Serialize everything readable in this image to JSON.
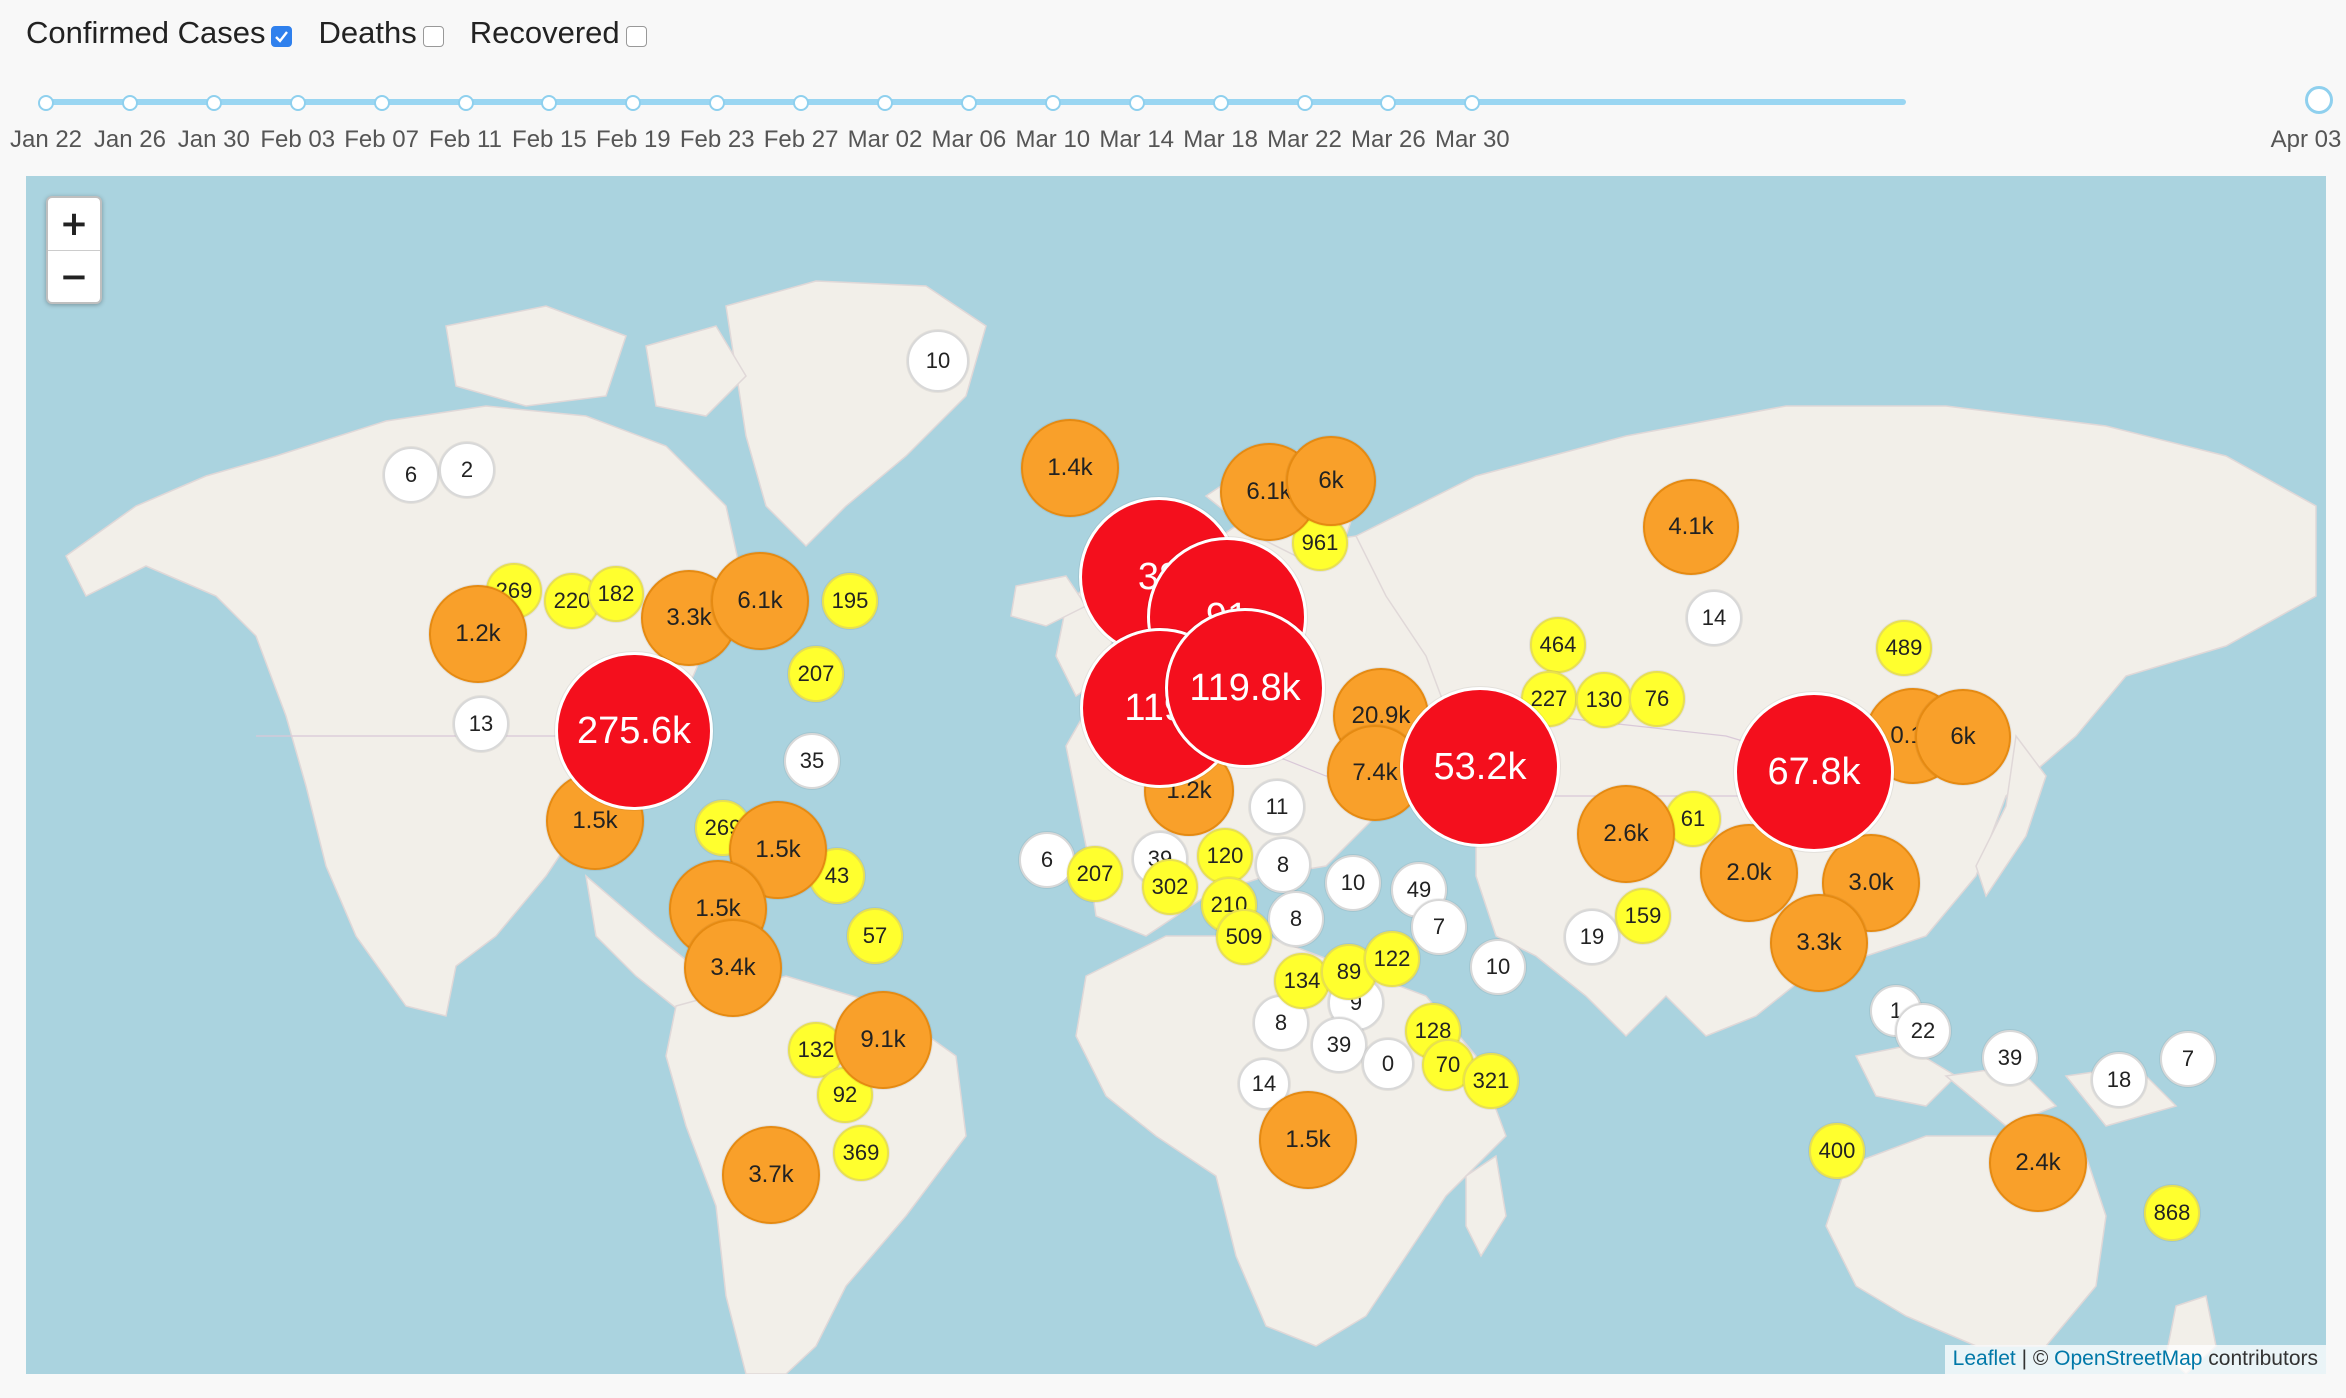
{
  "legend": [
    {
      "label": "Confirmed Cases",
      "checked": true
    },
    {
      "label": "Deaths",
      "checked": false
    },
    {
      "label": "Recovered",
      "checked": false
    }
  ],
  "timeline": {
    "labels": [
      "Jan 22",
      "Jan 26",
      "Jan 30",
      "Feb 03",
      "Feb 07",
      "Feb 11",
      "Feb 15",
      "Feb 19",
      "Feb 23",
      "Feb 27",
      "Mar 02",
      "Mar 06",
      "Mar 10",
      "Mar 14",
      "Mar 18",
      "Mar 22",
      "Mar 26",
      "Mar 30",
      "Apr 03"
    ],
    "selected": "Apr 03"
  },
  "map": {
    "zoom_in": "+",
    "zoom_out": "−",
    "attribution": {
      "leaflet": "Leaflet",
      "sep": " | © ",
      "osm": "OpenStreetMap",
      "suffix": " contributors"
    },
    "colors": {
      "water": "#aad3df",
      "land": "#f2efe9",
      "low": "#ffffff",
      "mid": "#ffff2e",
      "high": "#f9a02a",
      "top": "#f40f1d"
    }
  },
  "bubbles": [
    {
      "label": "10",
      "tier": "low"
    },
    {
      "label": "6",
      "tier": "low"
    },
    {
      "label": "2",
      "tier": "low"
    },
    {
      "label": "13",
      "tier": "low"
    },
    {
      "label": "35",
      "tier": "low"
    },
    {
      "label": "6",
      "tier": "low"
    },
    {
      "label": "11",
      "tier": "low"
    },
    {
      "label": "8",
      "tier": "low"
    },
    {
      "label": "10",
      "tier": "low"
    },
    {
      "label": "49",
      "tier": "low"
    },
    {
      "label": "8",
      "tier": "low"
    },
    {
      "label": "7",
      "tier": "low"
    },
    {
      "label": "9",
      "tier": "low"
    },
    {
      "label": "10",
      "tier": "low"
    },
    {
      "label": "8",
      "tier": "low"
    },
    {
      "label": "39",
      "tier": "low"
    },
    {
      "label": "14",
      "tier": "low"
    },
    {
      "label": "19",
      "tier": "low"
    },
    {
      "label": "1",
      "tier": "low"
    },
    {
      "label": "22",
      "tier": "low"
    },
    {
      "label": "39",
      "tier": "low"
    },
    {
      "label": "18",
      "tier": "low"
    },
    {
      "label": "7",
      "tier": "low"
    },
    {
      "label": "14",
      "tier": "low"
    },
    {
      "label": "39",
      "tier": "low"
    },
    {
      "label": "0",
      "tier": "low"
    },
    {
      "label": "269",
      "tier": "mid"
    },
    {
      "label": "220",
      "tier": "mid"
    },
    {
      "label": "182",
      "tier": "mid"
    },
    {
      "label": "195",
      "tier": "mid"
    },
    {
      "label": "207",
      "tier": "mid"
    },
    {
      "label": "269",
      "tier": "mid"
    },
    {
      "label": "43",
      "tier": "mid"
    },
    {
      "label": "57",
      "tier": "mid"
    },
    {
      "label": "132",
      "tier": "mid"
    },
    {
      "label": "92",
      "tier": "mid"
    },
    {
      "label": "369",
      "tier": "mid"
    },
    {
      "label": "961",
      "tier": "mid"
    },
    {
      "label": "464",
      "tier": "mid"
    },
    {
      "label": "227",
      "tier": "mid"
    },
    {
      "label": "130",
      "tier": "mid"
    },
    {
      "label": "76",
      "tier": "mid"
    },
    {
      "label": "61",
      "tier": "mid"
    },
    {
      "label": "159",
      "tier": "mid"
    },
    {
      "label": "489",
      "tier": "mid"
    },
    {
      "label": "207",
      "tier": "mid"
    },
    {
      "label": "302",
      "tier": "mid"
    },
    {
      "label": "120",
      "tier": "mid"
    },
    {
      "label": "210",
      "tier": "mid"
    },
    {
      "label": "509",
      "tier": "mid"
    },
    {
      "label": "134",
      "tier": "mid"
    },
    {
      "label": "89",
      "tier": "mid"
    },
    {
      "label": "122",
      "tier": "mid"
    },
    {
      "label": "128",
      "tier": "mid"
    },
    {
      "label": "70",
      "tier": "mid"
    },
    {
      "label": "321",
      "tier": "mid"
    },
    {
      "label": "400",
      "tier": "mid"
    },
    {
      "label": "868",
      "tier": "mid"
    },
    {
      "label": "1.4k",
      "tier": "high"
    },
    {
      "label": "6.1k",
      "tier": "high"
    },
    {
      "label": "6k",
      "tier": "high"
    },
    {
      "label": "4.1k",
      "tier": "high"
    },
    {
      "label": "1.2k",
      "tier": "high"
    },
    {
      "label": "3.3k",
      "tier": "high"
    },
    {
      "label": "6.1k",
      "tier": "high"
    },
    {
      "label": "1.5k",
      "tier": "high"
    },
    {
      "label": "1.5k",
      "tier": "high"
    },
    {
      "label": "1.5k",
      "tier": "high"
    },
    {
      "label": "3.4k",
      "tier": "high"
    },
    {
      "label": "9.1k",
      "tier": "high"
    },
    {
      "label": "3.7k",
      "tier": "high"
    },
    {
      "label": "20.9k",
      "tier": "high"
    },
    {
      "label": "7.4k",
      "tier": "high"
    },
    {
      "label": "2.6k",
      "tier": "high"
    },
    {
      "label": "2.0k",
      "tier": "high"
    },
    {
      "label": "3.0k",
      "tier": "high"
    },
    {
      "label": "3.3k",
      "tier": "high"
    },
    {
      "label": "1.5k",
      "tier": "high"
    },
    {
      "label": "2.4k",
      "tier": "high"
    },
    {
      "label": "1.2k",
      "tier": "high"
    },
    {
      "label": "0.1k",
      "tier": "high"
    },
    {
      "label": "6k",
      "tier": "high"
    },
    {
      "label": "275.6k",
      "tier": "top"
    },
    {
      "label": "38",
      "tier": "top"
    },
    {
      "label": "91",
      "tier": "top"
    },
    {
      "label": "119.",
      "tier": "top"
    },
    {
      "label": "119.8k",
      "tier": "top"
    },
    {
      "label": "53.2k",
      "tier": "top"
    },
    {
      "label": "67.8k",
      "tier": "top"
    }
  ]
}
